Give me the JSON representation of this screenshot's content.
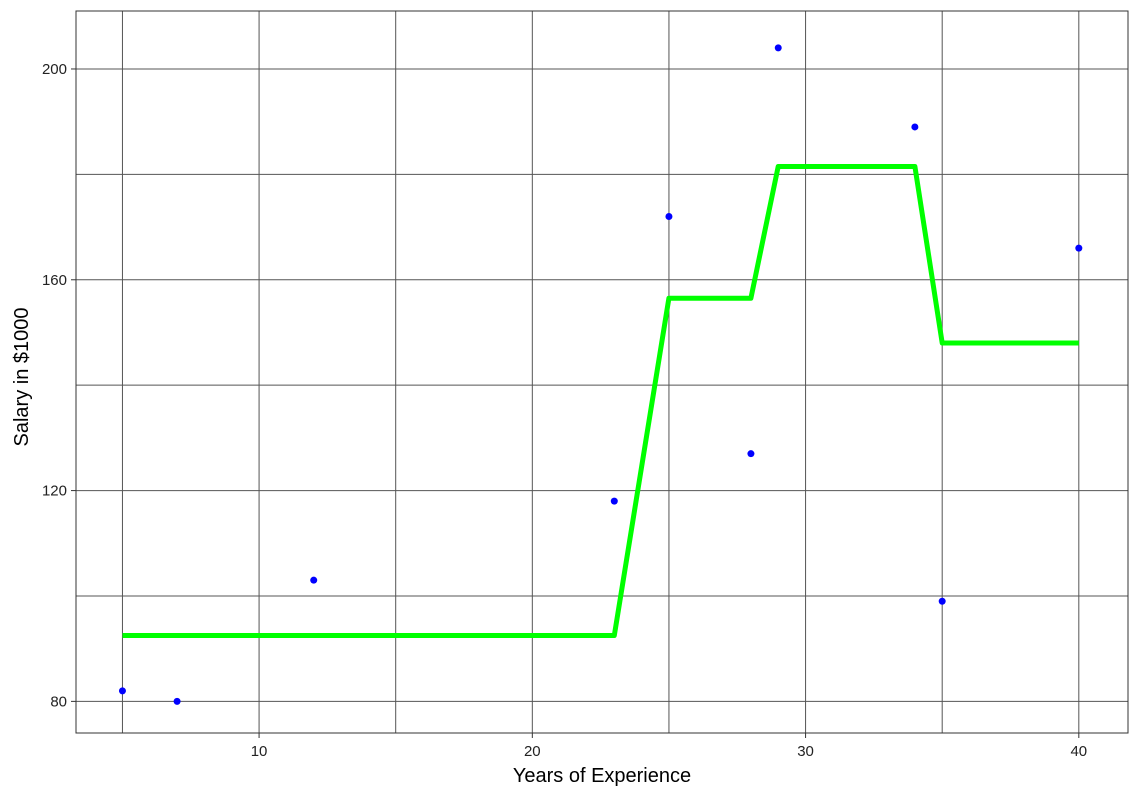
{
  "chart_data": {
    "type": "scatter",
    "xlabel": "Years of Experience",
    "ylabel": "Salary in $1000",
    "xlim": [
      3.3,
      41.8
    ],
    "ylim": [
      74,
      211
    ],
    "x_ticks": [
      10,
      20,
      30,
      40
    ],
    "y_ticks": [
      80,
      120,
      160,
      200
    ],
    "x_minor_gridlines": [
      5,
      15,
      25,
      35
    ],
    "y_minor_gridlines": [
      100,
      140,
      180
    ],
    "grid": true,
    "series": [
      {
        "kind": "points",
        "color": "#0000ff",
        "points": [
          {
            "x": 5,
            "y": 82
          },
          {
            "x": 7,
            "y": 80
          },
          {
            "x": 12,
            "y": 103
          },
          {
            "x": 23,
            "y": 118
          },
          {
            "x": 25,
            "y": 172
          },
          {
            "x": 28,
            "y": 127
          },
          {
            "x": 29,
            "y": 204
          },
          {
            "x": 34,
            "y": 189
          },
          {
            "x": 35,
            "y": 99
          },
          {
            "x": 40,
            "y": 166
          }
        ]
      },
      {
        "kind": "line",
        "color": "#00ff00",
        "points": [
          {
            "x": 5,
            "y": 92.5
          },
          {
            "x": 23,
            "y": 92.5
          },
          {
            "x": 25,
            "y": 156.5
          },
          {
            "x": 28,
            "y": 156.5
          },
          {
            "x": 29,
            "y": 181.5
          },
          {
            "x": 34,
            "y": 181.5
          },
          {
            "x": 35,
            "y": 148
          },
          {
            "x": 40,
            "y": 148
          }
        ]
      }
    ]
  }
}
